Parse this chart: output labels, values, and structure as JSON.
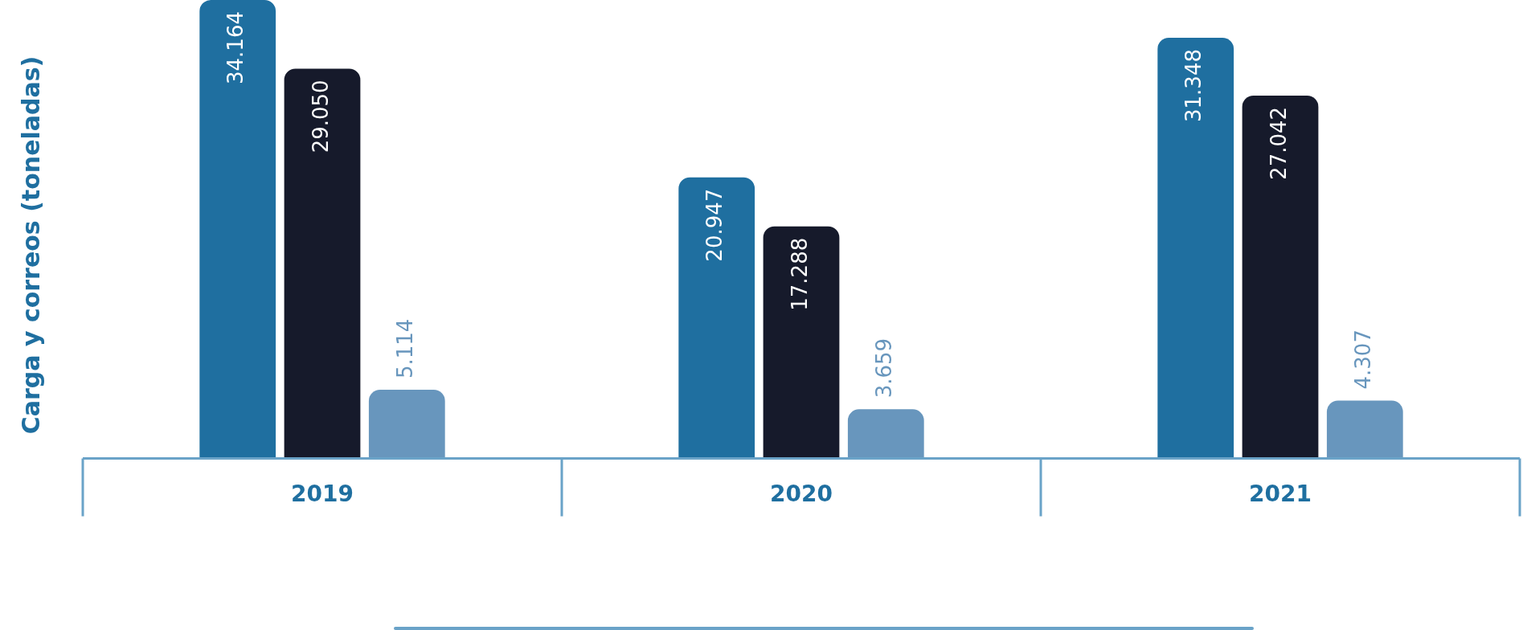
{
  "chart_data": {
    "type": "bar",
    "ylabel": "Carga y correos (toneladas)",
    "categories": [
      "2019",
      "2020",
      "2021"
    ],
    "series": [
      {
        "color": "#1f6fa0",
        "values": [
          34164,
          20947,
          31348
        ],
        "value_labels": [
          "34.164",
          "20.947",
          "31.348"
        ]
      },
      {
        "color": "#161a2b",
        "values": [
          29050,
          17288,
          27042
        ],
        "value_labels": [
          "29.050",
          "17.288",
          "27.042"
        ]
      },
      {
        "color": "#6896bd",
        "values": [
          5114,
          3659,
          4307
        ],
        "value_labels": [
          "5.114",
          "3.659",
          "4.307"
        ]
      }
    ],
    "grid": false,
    "legend": false
  }
}
